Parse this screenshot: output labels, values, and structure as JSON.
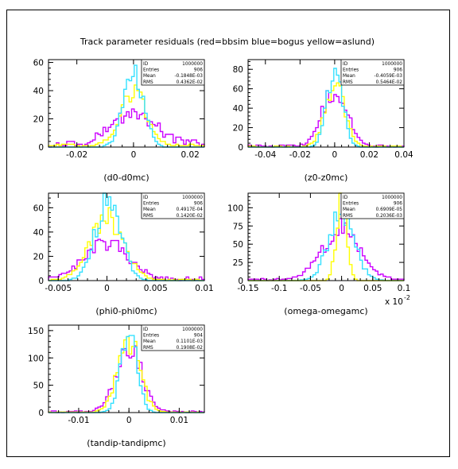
{
  "figure": {
    "title": "Track parameter residuals (red=bbsim blue=bogus yellow=aslund)"
  },
  "colors": {
    "cyan": "#33e0ff",
    "yellow": "#ffff00",
    "magenta": "#cc00ff",
    "frame": "#000000"
  },
  "chart_data": [
    {
      "type": "histogram",
      "xlabel": "(d0-d0mc)",
      "xlim": [
        -0.03,
        0.025
      ],
      "ylim": [
        0,
        62
      ],
      "xticks": [
        -0.02,
        0,
        0.02
      ],
      "xtick_labels": [
        "-0.02",
        "0",
        "0.02"
      ],
      "yticks": [
        0,
        20,
        40,
        60
      ],
      "ytick_labels": [
        "0",
        "20",
        "40",
        "60"
      ],
      "stats": [
        {
          "key": "ID",
          "value": "1000000"
        },
        {
          "key": "Entries",
          "value": "906"
        },
        {
          "key": "Mean",
          "value": "-0.1848E-03"
        },
        {
          "key": "RMS",
          "value": "0.4362E-02"
        }
      ],
      "series": [
        {
          "color": "magenta",
          "center": 0,
          "rms": 0.0075,
          "peak": 22,
          "tail": 5
        },
        {
          "color": "yellow",
          "center": 0,
          "rms": 0.0045,
          "peak": 38,
          "tail": 2
        },
        {
          "color": "cyan",
          "center": 0,
          "rms": 0.0035,
          "peak": 55,
          "tail": 0
        }
      ]
    },
    {
      "type": "histogram",
      "xlabel": "(z0-z0mc)",
      "xlim": [
        -0.05,
        0.04
      ],
      "ylim": [
        0,
        90
      ],
      "xticks": [
        -0.04,
        -0.02,
        0,
        0.02,
        0.04
      ],
      "xtick_labels": [
        "-0.04",
        "-0.02",
        "0",
        "0.02",
        "0.04"
      ],
      "yticks": [
        0,
        20,
        40,
        60,
        80
      ],
      "ytick_labels": [
        "0",
        "20",
        "40",
        "60",
        "80"
      ],
      "stats": [
        {
          "key": "ID",
          "value": "1000000"
        },
        {
          "key": "Entries",
          "value": "906"
        },
        {
          "key": "Mean",
          "value": "-0.4059E-03"
        },
        {
          "key": "RMS",
          "value": "0.5464E-02"
        }
      ],
      "series": [
        {
          "color": "magenta",
          "center": 0,
          "rms": 0.007,
          "peak": 58,
          "tail": 2
        },
        {
          "color": "yellow",
          "center": 0,
          "rms": 0.0055,
          "peak": 65,
          "tail": 1
        },
        {
          "color": "cyan",
          "center": 0,
          "rms": 0.0045,
          "peak": 82,
          "tail": 0
        }
      ]
    },
    {
      "type": "histogram",
      "xlabel": "(phi0-phi0mc)",
      "xlim": [
        -0.006,
        0.01
      ],
      "ylim": [
        0,
        72
      ],
      "xticks": [
        -0.005,
        0,
        0.005,
        0.01
      ],
      "xtick_labels": [
        "-0.005",
        "0",
        "0.005",
        "0.01"
      ],
      "yticks": [
        0,
        20,
        40,
        60
      ],
      "ytick_labels": [
        "0",
        "20",
        "40",
        "60"
      ],
      "stats": [
        {
          "key": "ID",
          "value": "1000000"
        },
        {
          "key": "Entries",
          "value": "906"
        },
        {
          "key": "Mean",
          "value": "0.4917E-04"
        },
        {
          "key": "RMS",
          "value": "0.1420E-02"
        }
      ],
      "series": [
        {
          "color": "magenta",
          "center": 0,
          "rms": 0.0022,
          "peak": 30,
          "tail": 3
        },
        {
          "color": "yellow",
          "center": 0,
          "rms": 0.0017,
          "peak": 50,
          "tail": 1
        },
        {
          "color": "cyan",
          "center": 0.0001,
          "rms": 0.0013,
          "peak": 66,
          "tail": 0
        }
      ]
    },
    {
      "type": "histogram",
      "xlabel": "(omega-omegamc)",
      "axis_multiplier": "x 10^-2",
      "xlim": [
        -0.15,
        0.1
      ],
      "ylim": [
        0,
        120
      ],
      "xticks": [
        -0.15,
        -0.1,
        -0.05,
        0,
        0.05,
        0.1
      ],
      "xtick_labels": [
        "-0.15",
        "-0.1",
        "-0.05",
        "0",
        "0.05",
        "0.1"
      ],
      "yticks": [
        0,
        25,
        50,
        75,
        100
      ],
      "ytick_labels": [
        "0",
        "25",
        "50",
        "75",
        "100"
      ],
      "stats": [
        {
          "key": "ID",
          "value": "1000000"
        },
        {
          "key": "Entries",
          "value": "906"
        },
        {
          "key": "Mean",
          "value": "0.6909E-05"
        },
        {
          "key": "RMS",
          "value": "0.2036E-03"
        }
      ],
      "series": [
        {
          "color": "magenta",
          "center": 0,
          "rms": 0.03,
          "peak": 70,
          "tail": 3
        },
        {
          "color": "cyan",
          "center": 0,
          "rms": 0.02,
          "peak": 95,
          "tail": 0
        },
        {
          "color": "yellow",
          "center": 0,
          "rms": 0.008,
          "peak": 118,
          "tail": 0
        }
      ]
    },
    {
      "type": "histogram",
      "xlabel": "(tandip-tandipmc)",
      "xlim": [
        -0.016,
        0.015
      ],
      "ylim": [
        0,
        160
      ],
      "xticks": [
        -0.01,
        0,
        0.01
      ],
      "xtick_labels": [
        "-0.01",
        "0",
        "0.01"
      ],
      "yticks": [
        0,
        50,
        100,
        150
      ],
      "ytick_labels": [
        "0",
        "50",
        "100",
        "150"
      ],
      "stats": [
        {
          "key": "ID",
          "value": "1000000"
        },
        {
          "key": "Entries",
          "value": "904"
        },
        {
          "key": "Mean",
          "value": "0.1101E-03"
        },
        {
          "key": "RMS",
          "value": "0.1908E-02"
        }
      ],
      "series": [
        {
          "color": "magenta",
          "center": 0,
          "rms": 0.0025,
          "peak": 120,
          "tail": 3
        },
        {
          "color": "yellow",
          "center": 0,
          "rms": 0.0022,
          "peak": 130,
          "tail": 1
        },
        {
          "color": "cyan",
          "center": 0,
          "rms": 0.0016,
          "peak": 145,
          "tail": 0
        }
      ]
    }
  ]
}
